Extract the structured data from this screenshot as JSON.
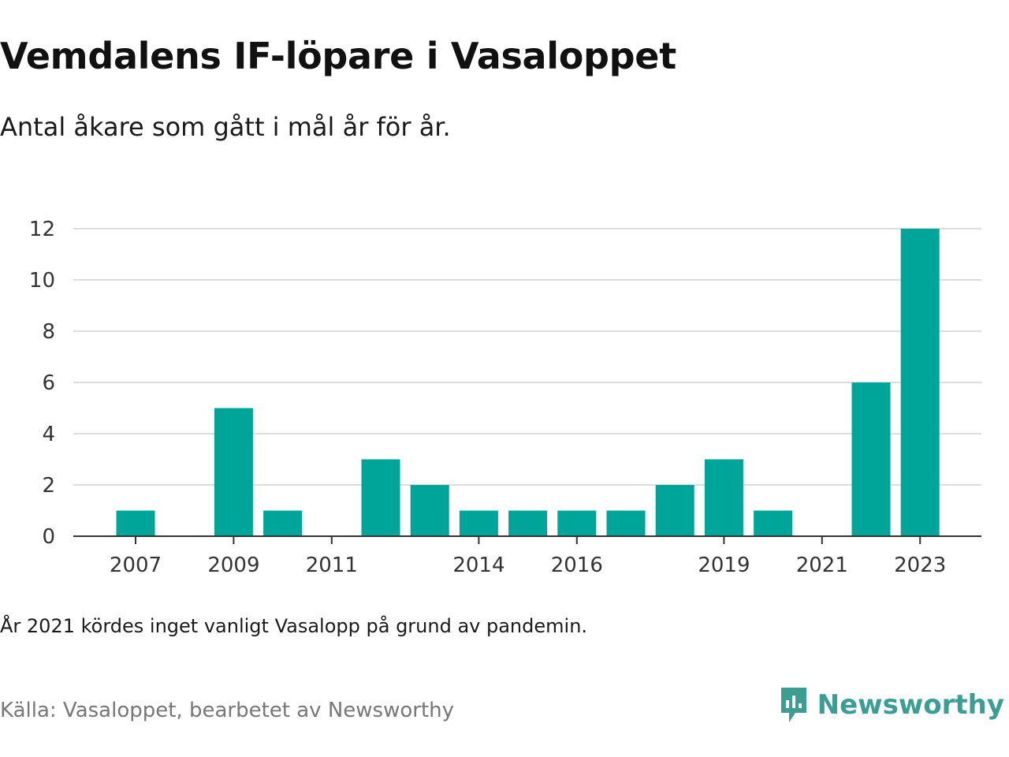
{
  "header": {
    "title": "Vemdalens IF-löpare i Vasaloppet",
    "subtitle": "Antal åkare som gått i mål år för år."
  },
  "chart_data": {
    "type": "bar",
    "categories": [
      "2007",
      "2008",
      "2009",
      "2010",
      "2011",
      "2012",
      "2013",
      "2014",
      "2015",
      "2016",
      "2017",
      "2018",
      "2019",
      "2020",
      "2021",
      "2022",
      "2023"
    ],
    "values": [
      1,
      0,
      5,
      1,
      0,
      3,
      2,
      1,
      1,
      1,
      1,
      2,
      3,
      1,
      0,
      6,
      12
    ],
    "x_tick_labels": [
      "2007",
      "2009",
      "2011",
      "2014",
      "2016",
      "2019",
      "2021",
      "2023"
    ],
    "y_ticks": [
      0,
      2,
      4,
      6,
      8,
      10,
      12
    ],
    "ylim": [
      0,
      12
    ],
    "grid": true,
    "bar_color": "#00a59a"
  },
  "footer": {
    "note": "År 2021 kördes inget vanligt Vasalopp på grund av pandemin.",
    "source": "Källa: Vasaloppet, bearbetet av Newsworthy",
    "brand": "Newsworthy",
    "brand_icon": "newsworthy-logo-icon",
    "brand_color": "#3a9e92"
  }
}
